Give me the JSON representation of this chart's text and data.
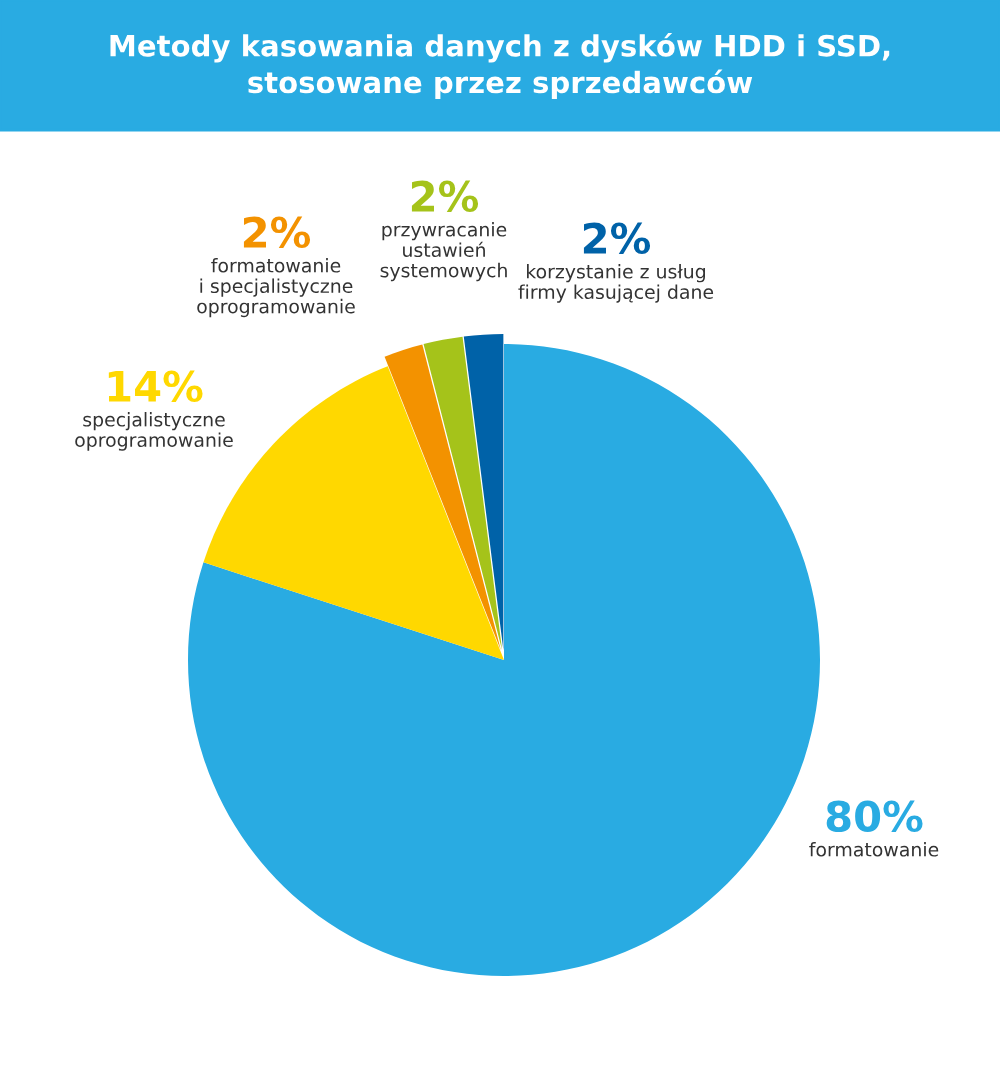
{
  "chart_data": {
    "type": "pie",
    "title": "Metody kasowania danych z dysków HDD i SSD,\nstosowane przez sprzedawców",
    "categories": [
      "formatowanie",
      "specjalistyczne\noprogramowanie",
      "formatowanie\ni specjalistyczne\noprogramowanie",
      "przywracanie\nustawień\nsystemowych",
      "korzystanie z usług\nfirmy kasującej dane"
    ],
    "values": [
      80,
      14,
      2,
      2,
      2
    ],
    "value_labels": [
      "80%",
      "14%",
      "2%",
      "2%",
      "2%"
    ],
    "colors": [
      "#29abe2",
      "#ffd800",
      "#f39200",
      "#a5c31a",
      "#0062a8"
    ]
  }
}
